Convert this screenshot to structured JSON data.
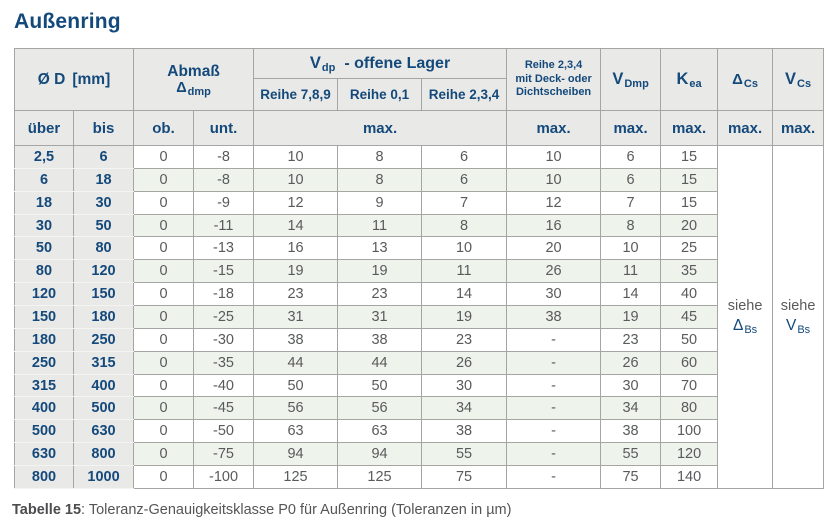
{
  "title": "Außenring",
  "caption": {
    "label": "Tabelle 15",
    "text": ": Toleranz-Genauigkeitsklasse P0 für Außenring (Toleranzen in µm)"
  },
  "colors": {
    "accent_blue": "#14497b",
    "header_gray": "#e9e9e7",
    "row_green": "#eef4ec",
    "value_text_gray": "#595a5c",
    "border_gray": "#a5a5a3"
  },
  "header": {
    "d": {
      "main": "Ø D",
      "unit": "[mm]"
    },
    "abmass": {
      "line1": "Abmaß",
      "sym": "Δ",
      "sub": "dmp"
    },
    "vdp": {
      "main": "V",
      "sub": "dp",
      "suffix": "-  offene Lager"
    },
    "reihe789": "Reihe 7,8,9",
    "reihe01": "Reihe 0,1",
    "reihe234": "Reihe 2,3,4",
    "deck": {
      "line1": "Reihe 2,3,4",
      "line2": "mit Deck- oder",
      "line3": "Dichtscheiben"
    },
    "vdmp": {
      "main": "V",
      "sub": "Dmp"
    },
    "kea": {
      "main": "K",
      "sub": "ea"
    },
    "dcs": {
      "main": "Δ",
      "sub": "Cs"
    },
    "vcs": {
      "main": "V",
      "sub": "Cs"
    },
    "ueber": "über",
    "bis": "bis",
    "ob": "ob.",
    "unt": "unt.",
    "max": "max."
  },
  "see_cells": {
    "dbs": {
      "prefix": "siehe",
      "main": "Δ",
      "sub": "Bs"
    },
    "vbs": {
      "prefix": "siehe",
      "main": "V",
      "sub": "Bs"
    }
  },
  "rows": [
    [
      "2,5",
      "6",
      "0",
      "-8",
      "10",
      "8",
      "6",
      "10",
      "6",
      "15"
    ],
    [
      "6",
      "18",
      "0",
      "-8",
      "10",
      "8",
      "6",
      "10",
      "6",
      "15"
    ],
    [
      "18",
      "30",
      "0",
      "-9",
      "12",
      "9",
      "7",
      "12",
      "7",
      "15"
    ],
    [
      "30",
      "50",
      "0",
      "-11",
      "14",
      "11",
      "8",
      "16",
      "8",
      "20"
    ],
    [
      "50",
      "80",
      "0",
      "-13",
      "16",
      "13",
      "10",
      "20",
      "10",
      "25"
    ],
    [
      "80",
      "120",
      "0",
      "-15",
      "19",
      "19",
      "11",
      "26",
      "11",
      "35"
    ],
    [
      "120",
      "150",
      "0",
      "-18",
      "23",
      "23",
      "14",
      "30",
      "14",
      "40"
    ],
    [
      "150",
      "180",
      "0",
      "-25",
      "31",
      "31",
      "19",
      "38",
      "19",
      "45"
    ],
    [
      "180",
      "250",
      "0",
      "-30",
      "38",
      "38",
      "23",
      "-",
      "23",
      "50"
    ],
    [
      "250",
      "315",
      "0",
      "-35",
      "44",
      "44",
      "26",
      "-",
      "26",
      "60"
    ],
    [
      "315",
      "400",
      "0",
      "-40",
      "50",
      "50",
      "30",
      "-",
      "30",
      "70"
    ],
    [
      "400",
      "500",
      "0",
      "-45",
      "56",
      "56",
      "34",
      "-",
      "34",
      "80"
    ],
    [
      "500",
      "630",
      "0",
      "-50",
      "63",
      "63",
      "38",
      "-",
      "38",
      "100"
    ],
    [
      "630",
      "800",
      "0",
      "-75",
      "94",
      "94",
      "55",
      "-",
      "55",
      "120"
    ],
    [
      "800",
      "1000",
      "0",
      "-100",
      "125",
      "125",
      "75",
      "-",
      "75",
      "140"
    ]
  ]
}
